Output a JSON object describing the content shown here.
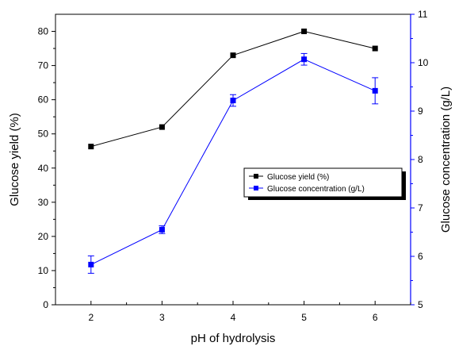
{
  "chart_data": {
    "type": "line",
    "title": "",
    "xlabel": "pH of hydrolysis",
    "ylabel": "Glucose yield (%)",
    "ylabel_right": "Glucose concentration (g/L)",
    "x": [
      2,
      3,
      4,
      5,
      6
    ],
    "x_ticks": [
      "2",
      "3",
      "4",
      "5",
      "6"
    ],
    "xlim": [
      1.5,
      6.5
    ],
    "ylim": [
      0,
      85
    ],
    "ylim_right": [
      5,
      11
    ],
    "y_ticks": [
      "0",
      "10",
      "20",
      "30",
      "40",
      "50",
      "60",
      "70",
      "80"
    ],
    "y_ticks_right": [
      "5",
      "6",
      "7",
      "8",
      "9",
      "10",
      "11"
    ],
    "grid": false,
    "legend_position": "center-right",
    "series": [
      {
        "name": "Glucose yield (%)",
        "axis": "left",
        "color": "#000000",
        "marker": "square",
        "values": [
          46.3,
          52.0,
          73.0,
          80.0,
          75.0
        ]
      },
      {
        "name": "Glucose concentration (g/L)",
        "axis": "right",
        "color": "#0000ff",
        "marker": "square",
        "values": [
          5.83,
          6.55,
          9.22,
          10.07,
          9.42
        ],
        "error": [
          0.18,
          0.08,
          0.12,
          0.12,
          0.27
        ]
      }
    ]
  }
}
